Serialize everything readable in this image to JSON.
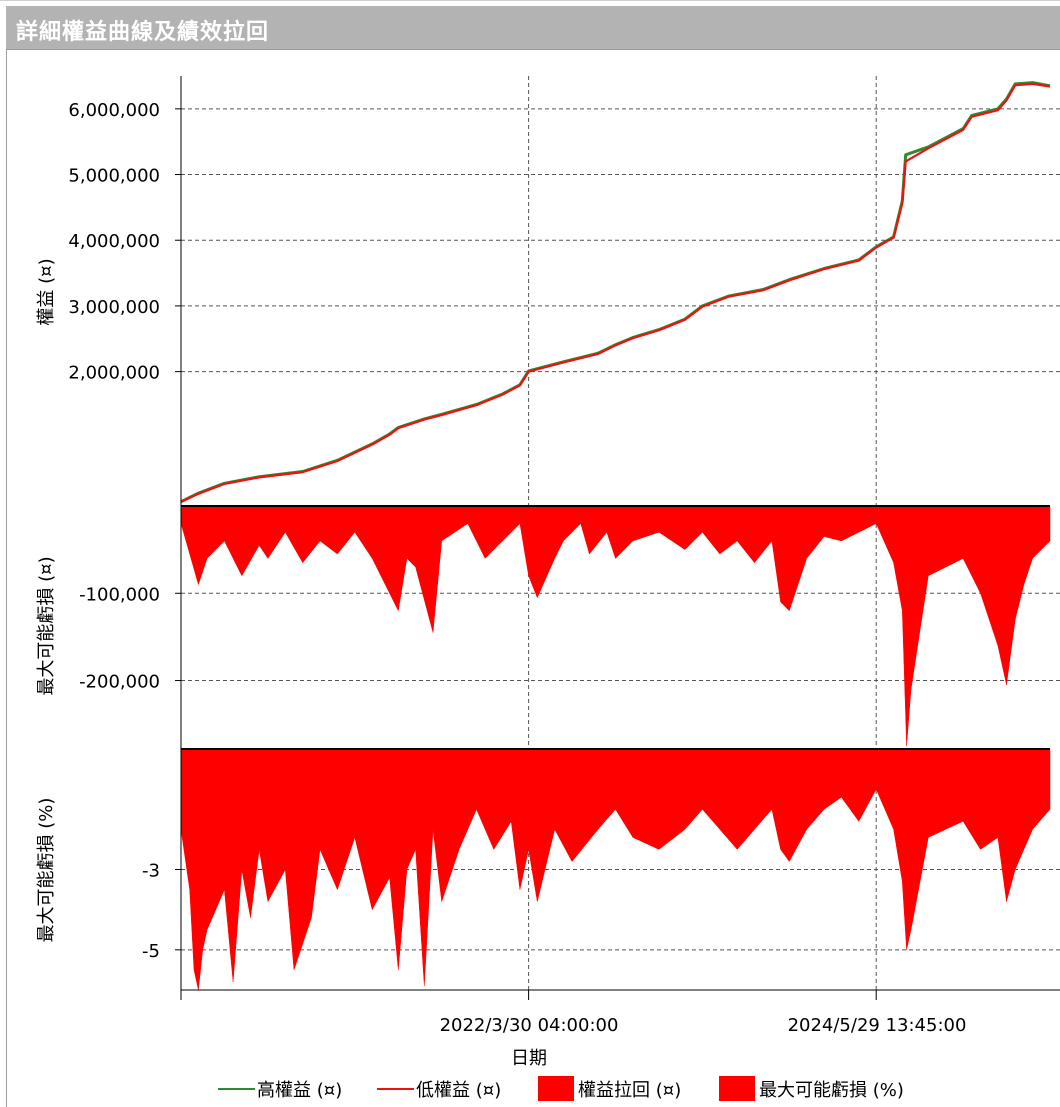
{
  "window": {
    "title": "詳細權益曲線及績效拉回"
  },
  "chart_data": [
    {
      "type": "line",
      "panel": "equity",
      "ylabel": "權益 (¤)",
      "ylim": [
        0,
        6500000
      ],
      "yticks": [
        2000000,
        3000000,
        4000000,
        5000000,
        6000000
      ],
      "ytick_labels": [
        "2,000,000",
        "3,000,000",
        "4,000,000",
        "5,000,000",
        "6,000,000"
      ],
      "grid": true,
      "x_progress": [
        0,
        0.02,
        0.05,
        0.09,
        0.14,
        0.18,
        0.22,
        0.24,
        0.25,
        0.28,
        0.3,
        0.34,
        0.37,
        0.39,
        0.4,
        0.44,
        0.48,
        0.5,
        0.52,
        0.55,
        0.58,
        0.6,
        0.63,
        0.67,
        0.7,
        0.74,
        0.78,
        0.8,
        0.82,
        0.83,
        0.834,
        0.86,
        0.9,
        0.91,
        0.94,
        0.95,
        0.96,
        0.98,
        1.0
      ],
      "series": [
        {
          "name": "高權益 (¤)",
          "color": "#2e8b2e",
          "values": [
            20000,
            150000,
            300000,
            400000,
            480000,
            650000,
            900000,
            1050000,
            1150000,
            1280000,
            1350000,
            1500000,
            1660000,
            1800000,
            2010000,
            2150000,
            2280000,
            2410000,
            2520000,
            2640000,
            2800000,
            3000000,
            3150000,
            3250000,
            3400000,
            3570000,
            3700000,
            3900000,
            4050000,
            4600000,
            5300000,
            5420000,
            5700000,
            5900000,
            6000000,
            6150000,
            6380000,
            6400000,
            6350000
          ]
        },
        {
          "name": "低權益 (¤)",
          "color": "#ee1111",
          "values": [
            20000,
            140000,
            290000,
            390000,
            470000,
            640000,
            890000,
            1040000,
            1140000,
            1270000,
            1340000,
            1490000,
            1650000,
            1790000,
            2000000,
            2140000,
            2270000,
            2400000,
            2510000,
            2630000,
            2790000,
            2990000,
            3140000,
            3240000,
            3390000,
            3560000,
            3690000,
            3890000,
            4040000,
            4560000,
            5200000,
            5400000,
            5680000,
            5880000,
            5980000,
            6130000,
            6360000,
            6380000,
            6340000
          ]
        }
      ]
    },
    {
      "type": "area",
      "panel": "drawdown-abs",
      "ylabel": "最大可能虧損 (¤)",
      "ylim": [
        -275000,
        0
      ],
      "yticks": [
        -100000,
        -200000
      ],
      "ytick_labels": [
        "-100,000",
        "-200,000"
      ],
      "grid": true,
      "series": [
        {
          "name": "權益拉回 (¤)",
          "color": "#ff0000",
          "x_progress": [
            0,
            0.01,
            0.02,
            0.03,
            0.05,
            0.07,
            0.09,
            0.1,
            0.12,
            0.14,
            0.16,
            0.18,
            0.2,
            0.22,
            0.24,
            0.25,
            0.26,
            0.27,
            0.29,
            0.3,
            0.33,
            0.35,
            0.37,
            0.39,
            0.4,
            0.41,
            0.43,
            0.44,
            0.46,
            0.47,
            0.49,
            0.5,
            0.52,
            0.55,
            0.58,
            0.6,
            0.62,
            0.64,
            0.66,
            0.68,
            0.69,
            0.7,
            0.72,
            0.74,
            0.76,
            0.78,
            0.8,
            0.82,
            0.83,
            0.835,
            0.84,
            0.86,
            0.88,
            0.9,
            0.92,
            0.94,
            0.95,
            0.96,
            0.97,
            0.98,
            1.0
          ],
          "values": [
            -20000,
            -55000,
            -90000,
            -60000,
            -40000,
            -80000,
            -45000,
            -60000,
            -30000,
            -65000,
            -40000,
            -55000,
            -30000,
            -60000,
            -100000,
            -120000,
            -60000,
            -70000,
            -145000,
            -40000,
            -20000,
            -60000,
            -40000,
            -20000,
            -80000,
            -105000,
            -60000,
            -40000,
            -20000,
            -55000,
            -30000,
            -60000,
            -40000,
            -30000,
            -50000,
            -30000,
            -55000,
            -40000,
            -65000,
            -40000,
            -110000,
            -120000,
            -60000,
            -35000,
            -40000,
            -30000,
            -20000,
            -65000,
            -120000,
            -275000,
            -210000,
            -80000,
            -70000,
            -60000,
            -100000,
            -160000,
            -205000,
            -130000,
            -90000,
            -60000,
            -40000
          ]
        }
      ]
    },
    {
      "type": "area",
      "panel": "drawdown-pct",
      "ylabel": "最大可能虧損 (%)",
      "ylim": [
        -6,
        0
      ],
      "yticks": [
        -3,
        -5
      ],
      "ytick_labels": [
        "-3",
        "-5"
      ],
      "grid": true,
      "series": [
        {
          "name": "最大可能虧損 (%)",
          "color": "#ff0000",
          "x_progress": [
            0,
            0.01,
            0.015,
            0.02,
            0.025,
            0.03,
            0.04,
            0.05,
            0.06,
            0.07,
            0.08,
            0.09,
            0.1,
            0.12,
            0.13,
            0.15,
            0.16,
            0.18,
            0.2,
            0.22,
            0.24,
            0.25,
            0.26,
            0.27,
            0.28,
            0.29,
            0.3,
            0.32,
            0.34,
            0.36,
            0.38,
            0.39,
            0.4,
            0.41,
            0.43,
            0.45,
            0.48,
            0.5,
            0.52,
            0.55,
            0.58,
            0.6,
            0.62,
            0.64,
            0.66,
            0.68,
            0.69,
            0.7,
            0.72,
            0.74,
            0.76,
            0.78,
            0.8,
            0.82,
            0.83,
            0.835,
            0.84,
            0.86,
            0.88,
            0.9,
            0.92,
            0.94,
            0.95,
            0.96,
            0.97,
            0.98,
            1.0
          ],
          "values": [
            -2,
            -3.5,
            -5.5,
            -6,
            -5,
            -4.5,
            -4,
            -3.5,
            -5.8,
            -3,
            -4.2,
            -2.5,
            -3.8,
            -3,
            -5.5,
            -4.2,
            -2.5,
            -3.5,
            -2.2,
            -4,
            -3.2,
            -5.5,
            -3,
            -2.5,
            -5.9,
            -2,
            -3.8,
            -2.5,
            -1.5,
            -2.5,
            -1.8,
            -3.5,
            -2.5,
            -3.8,
            -2,
            -2.8,
            -2,
            -1.5,
            -2.2,
            -2.5,
            -2,
            -1.5,
            -2,
            -2.5,
            -2,
            -1.5,
            -2.5,
            -2.8,
            -2,
            -1.5,
            -1.2,
            -1.8,
            -1,
            -2,
            -3.3,
            -5,
            -4.5,
            -2.2,
            -2,
            -1.8,
            -2.5,
            -2.2,
            -3.8,
            -3,
            -2.5,
            -2,
            -1.5
          ]
        }
      ]
    }
  ],
  "x_axis": {
    "label": "日期",
    "ticks": [
      {
        "label": "2022/3/30 04:00:00",
        "progress": 0.4
      },
      {
        "label": "2024/5/29 13:45:00",
        "progress": 0.8
      }
    ]
  },
  "legend": [
    {
      "label": "高權益 (¤)",
      "marker": "line",
      "color": "#2e8b2e"
    },
    {
      "label": "低權益 (¤)",
      "marker": "line",
      "color": "#ee1111"
    },
    {
      "label": "權益拉回 (¤)",
      "marker": "box",
      "color": "#ff0000"
    },
    {
      "label": "最大可能虧損 (%)",
      "marker": "box",
      "color": "#ff0000"
    }
  ]
}
